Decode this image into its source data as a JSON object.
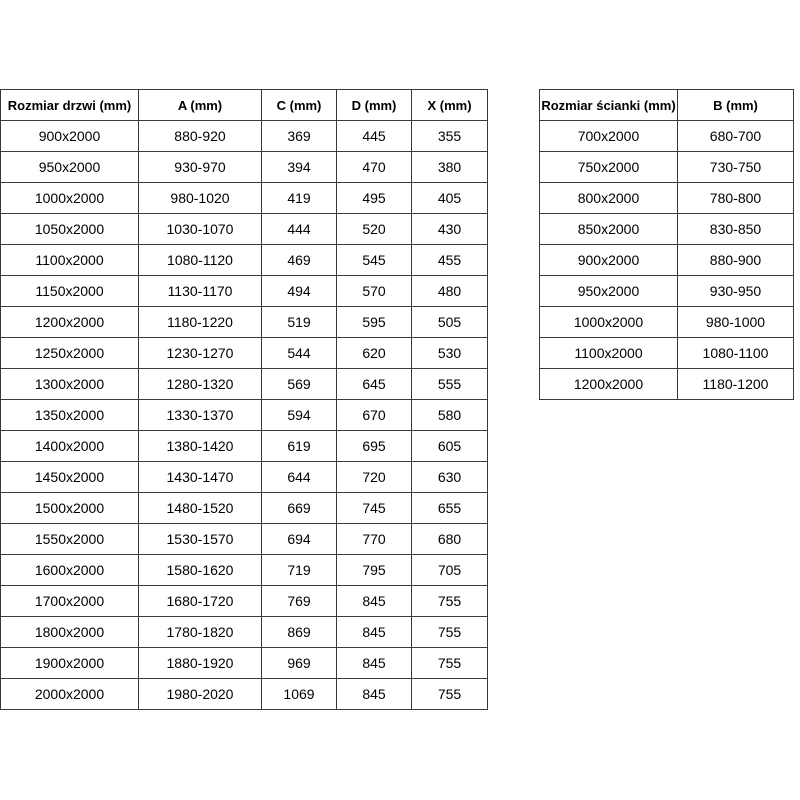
{
  "doors_table": {
    "headers": [
      "Rozmiar drzwi (mm)",
      "A (mm)",
      "C (mm)",
      "D (mm)",
      "X (mm)"
    ],
    "rows": [
      [
        "900x2000",
        "880-920",
        "369",
        "445",
        "355"
      ],
      [
        "950x2000",
        "930-970",
        "394",
        "470",
        "380"
      ],
      [
        "1000x2000",
        "980-1020",
        "419",
        "495",
        "405"
      ],
      [
        "1050x2000",
        "1030-1070",
        "444",
        "520",
        "430"
      ],
      [
        "1100x2000",
        "1080-1120",
        "469",
        "545",
        "455"
      ],
      [
        "1150x2000",
        "1130-1170",
        "494",
        "570",
        "480"
      ],
      [
        "1200x2000",
        "1180-1220",
        "519",
        "595",
        "505"
      ],
      [
        "1250x2000",
        "1230-1270",
        "544",
        "620",
        "530"
      ],
      [
        "1300x2000",
        "1280-1320",
        "569",
        "645",
        "555"
      ],
      [
        "1350x2000",
        "1330-1370",
        "594",
        "670",
        "580"
      ],
      [
        "1400x2000",
        "1380-1420",
        "619",
        "695",
        "605"
      ],
      [
        "1450x2000",
        "1430-1470",
        "644",
        "720",
        "630"
      ],
      [
        "1500x2000",
        "1480-1520",
        "669",
        "745",
        "655"
      ],
      [
        "1550x2000",
        "1530-1570",
        "694",
        "770",
        "680"
      ],
      [
        "1600x2000",
        "1580-1620",
        "719",
        "795",
        "705"
      ],
      [
        "1700x2000",
        "1680-1720",
        "769",
        "845",
        "755"
      ],
      [
        "1800x2000",
        "1780-1820",
        "869",
        "845",
        "755"
      ],
      [
        "1900x2000",
        "1880-1920",
        "969",
        "845",
        "755"
      ],
      [
        "2000x2000",
        "1980-2020",
        "1069",
        "845",
        "755"
      ]
    ]
  },
  "walls_table": {
    "headers": [
      "Rozmiar ścianki (mm)",
      "B (mm)"
    ],
    "rows": [
      [
        "700x2000",
        "680-700"
      ],
      [
        "750x2000",
        "730-750"
      ],
      [
        "800x2000",
        "780-800"
      ],
      [
        "850x2000",
        "830-850"
      ],
      [
        "900x2000",
        "880-900"
      ],
      [
        "950x2000",
        "930-950"
      ],
      [
        "1000x2000",
        "980-1000"
      ],
      [
        "1100x2000",
        "1080-1100"
      ],
      [
        "1200x2000",
        "1180-1200"
      ]
    ]
  }
}
